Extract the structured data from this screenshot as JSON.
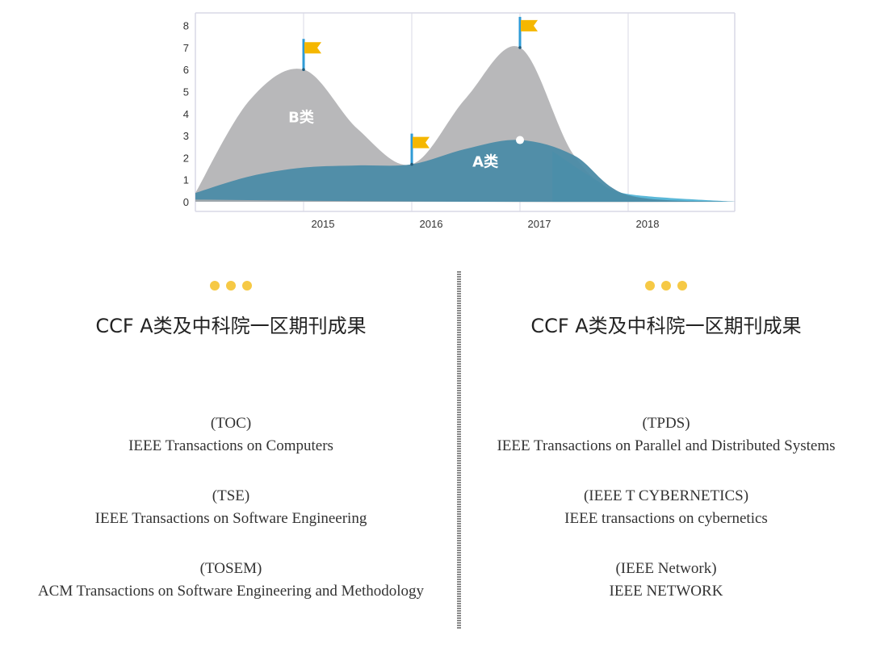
{
  "chart_data": {
    "type": "area",
    "x_ticks": [
      "2015",
      "2016",
      "2017",
      "2018"
    ],
    "y_ticks": [
      "0",
      "1",
      "2",
      "3",
      "4",
      "5",
      "6",
      "7",
      "8"
    ],
    "ylim": [
      0,
      8
    ],
    "grid": "vertical lines at year ticks",
    "series": [
      {
        "name": "B类",
        "color": "#b8b8ba",
        "x": [
          2014.0,
          2014.5,
          2015.0,
          2015.5,
          2016.0,
          2016.5,
          2017.0,
          2017.5,
          2018.0,
          2018.99
        ],
        "values": [
          0.4,
          4.6,
          6.0,
          3.3,
          1.7,
          4.7,
          7.0,
          2.1,
          0.3,
          0.0
        ]
      },
      {
        "name": "A类",
        "color": "#4b8ba6",
        "x": [
          2014.0,
          2014.5,
          2015.0,
          2015.5,
          2016.0,
          2016.5,
          2017.0,
          2017.5,
          2018.0,
          2018.99
        ],
        "values": [
          0.4,
          1.15,
          1.55,
          1.65,
          1.7,
          2.4,
          2.8,
          2.1,
          0.3,
          0.0
        ]
      }
    ],
    "flags": [
      {
        "x": 2015.0,
        "y": 6.0
      },
      {
        "x": 2016.0,
        "y": 1.7
      },
      {
        "x": 2017.0,
        "y": 7.0
      }
    ],
    "marker_point": {
      "x": 2017.0,
      "y": 2.8
    },
    "colors": {
      "flag": "#f5b700",
      "pole": "#2f9bd6",
      "axis": "#d8d8e6",
      "cyan": "#5bb8d8"
    }
  },
  "left": {
    "heading": "CCF A类及中科院一区期刊成果",
    "journals": [
      {
        "abbr": "(TOC)",
        "full": "IEEE Transactions on Computers"
      },
      {
        "abbr": "(TSE)",
        "full": "IEEE Transactions on Software Engineering"
      },
      {
        "abbr": "(TOSEM)",
        "full": "ACM Transactions on Software Engineering and Methodology"
      }
    ]
  },
  "right": {
    "heading": "CCF A类及中科院一区期刊成果",
    "journals": [
      {
        "abbr": "(TPDS)",
        "full": "IEEE Transactions on Parallel and Distributed Systems"
      },
      {
        "abbr": "(IEEE T CYBERNETICS)",
        "full": "IEEE transactions on cybernetics"
      },
      {
        "abbr": "(IEEE Network)",
        "full": "IEEE NETWORK"
      }
    ]
  },
  "colors": {
    "dot": "#f6c945"
  }
}
